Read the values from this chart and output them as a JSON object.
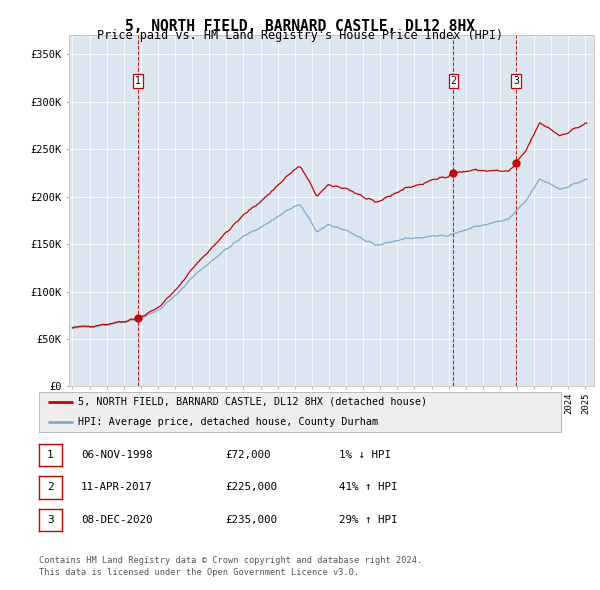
{
  "title": "5, NORTH FIELD, BARNARD CASTLE, DL12 8HX",
  "subtitle": "Price paid vs. HM Land Registry's House Price Index (HPI)",
  "title_fontsize": 10.5,
  "subtitle_fontsize": 8.5,
  "background_color": "#dce6f1",
  "fig_bg_color": "#ffffff",
  "red_line_color": "#cc0000",
  "blue_line_color": "#7aadcc",
  "sale_marker_color": "#cc0000",
  "vline_color": "#cc0000",
  "ylim": [
    0,
    370000
  ],
  "yticks": [
    0,
    50000,
    100000,
    150000,
    200000,
    250000,
    300000,
    350000
  ],
  "ytick_labels": [
    "£0",
    "£50K",
    "£100K",
    "£150K",
    "£200K",
    "£250K",
    "£300K",
    "£350K"
  ],
  "sales": [
    {
      "label": "1",
      "date_str": "06-NOV-1998",
      "price": 72000,
      "date_num": 1998.85
    },
    {
      "label": "2",
      "date_str": "11-APR-2017",
      "price": 225000,
      "date_num": 2017.28
    },
    {
      "label": "3",
      "date_str": "08-DEC-2020",
      "price": 235000,
      "date_num": 2020.94
    }
  ],
  "legend_line1": "5, NORTH FIELD, BARNARD CASTLE, DL12 8HX (detached house)",
  "legend_line2": "HPI: Average price, detached house, County Durham",
  "table_rows": [
    [
      "1",
      "06-NOV-1998",
      "£72,000",
      "1% ↓ HPI"
    ],
    [
      "2",
      "11-APR-2017",
      "£225,000",
      "41% ↑ HPI"
    ],
    [
      "3",
      "08-DEC-2020",
      "£235,000",
      "29% ↑ HPI"
    ]
  ],
  "footnote1": "Contains HM Land Registry data © Crown copyright and database right 2024.",
  "footnote2": "This data is licensed under the Open Government Licence v3.0.",
  "hpi_waypoints_t": [
    1995.0,
    1996.0,
    1997.0,
    1998.0,
    1999.0,
    2000.0,
    2001.0,
    2002.0,
    2003.5,
    2005.0,
    2006.5,
    2007.5,
    2008.3,
    2009.3,
    2010.0,
    2011.0,
    2012.0,
    2012.7,
    2013.5,
    2014.5,
    2015.5,
    2016.5,
    2017.0,
    2017.5,
    2018.5,
    2019.5,
    2020.5,
    2021.5,
    2022.3,
    2022.8,
    2023.5,
    2024.3,
    2025.0
  ],
  "hpi_waypoints_v": [
    61000,
    63000,
    65000,
    68000,
    72000,
    80000,
    95000,
    115000,
    138000,
    158000,
    173000,
    185000,
    192000,
    163000,
    170000,
    165000,
    155000,
    148000,
    152000,
    156000,
    157000,
    159000,
    160000,
    162000,
    168000,
    172000,
    176000,
    195000,
    218000,
    215000,
    208000,
    213000,
    218000
  ]
}
